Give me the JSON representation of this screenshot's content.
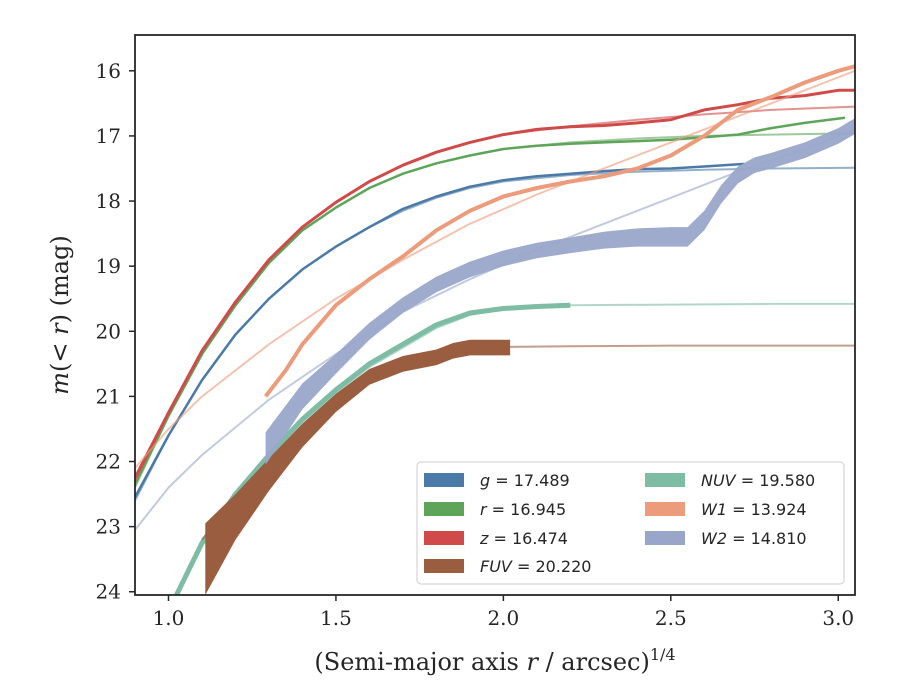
{
  "chart_data": {
    "type": "line",
    "xlabel": "(Semi-major axis r / arcsec)^1/4",
    "ylabel": "m(< r) (mag)",
    "xlim": [
      0.9,
      3.05
    ],
    "ylim": [
      24.05,
      15.45
    ],
    "y_inverted": true,
    "grid": false,
    "legend_placement": "lower-right",
    "xticks": [
      "1.0",
      "1.5",
      "2.0",
      "2.5",
      "3.0"
    ],
    "xtick_values": [
      1.0,
      1.5,
      2.0,
      2.5,
      3.0
    ],
    "yticks": [
      "16",
      "17",
      "18",
      "19",
      "20",
      "21",
      "22",
      "23",
      "24"
    ],
    "ytick_values": [
      16,
      17,
      18,
      19,
      20,
      21,
      22,
      23,
      24
    ],
    "legend": [
      {
        "label": "g = 17.489",
        "color": "#4c7aa8"
      },
      {
        "label": "NUV = 19.580",
        "color": "#7fbca5"
      },
      {
        "label": "r = 16.945",
        "color": "#5ea55a"
      },
      {
        "label": "W1 = 13.924",
        "color": "#ec9b7b"
      },
      {
        "label": "z = 16.474",
        "color": "#d04a49"
      },
      {
        "label": "W2 = 14.810",
        "color": "#99a6ca"
      },
      {
        "label": "FUV = 20.220",
        "color": "#9b5d3f"
      }
    ],
    "series": [
      {
        "name": "g = 17.489",
        "kind": "model",
        "color": "#4c7aa8",
        "x": [
          0.9,
          1.0,
          1.1,
          1.2,
          1.3,
          1.4,
          1.5,
          1.6,
          1.7,
          1.8,
          1.9,
          2.0,
          2.2,
          2.4,
          2.6,
          2.8,
          3.05
        ],
        "y": [
          22.6,
          21.6,
          20.75,
          20.05,
          19.5,
          19.05,
          18.7,
          18.4,
          18.15,
          17.95,
          17.8,
          17.7,
          17.6,
          17.55,
          17.52,
          17.5,
          17.49
        ]
      },
      {
        "name": "g = 17.489",
        "kind": "profile",
        "color": "#4c7aa8",
        "width": 2.5,
        "x": [
          0.9,
          1.0,
          1.1,
          1.2,
          1.3,
          1.4,
          1.5,
          1.6,
          1.7,
          1.8,
          1.9,
          2.0,
          2.1,
          2.2,
          2.3,
          2.4,
          2.5,
          2.6,
          2.72
        ],
        "y": [
          22.55,
          21.6,
          20.75,
          20.05,
          19.5,
          19.05,
          18.7,
          18.4,
          18.12,
          17.93,
          17.78,
          17.68,
          17.62,
          17.58,
          17.54,
          17.51,
          17.5,
          17.47,
          17.43
        ]
      },
      {
        "name": "r = 16.945",
        "kind": "model",
        "color": "#5ea55a",
        "x": [
          0.9,
          1.0,
          1.1,
          1.2,
          1.3,
          1.4,
          1.5,
          1.6,
          1.7,
          1.8,
          1.9,
          2.0,
          2.2,
          2.4,
          2.6,
          2.8,
          3.05
        ],
        "y": [
          22.4,
          21.3,
          20.35,
          19.6,
          18.95,
          18.45,
          18.1,
          17.8,
          17.58,
          17.42,
          17.3,
          17.2,
          17.1,
          17.04,
          17.0,
          16.98,
          16.96
        ]
      },
      {
        "name": "r = 16.945",
        "kind": "profile",
        "color": "#5ea55a",
        "width": 2.5,
        "x": [
          0.9,
          1.0,
          1.1,
          1.2,
          1.3,
          1.4,
          1.5,
          1.6,
          1.7,
          1.8,
          1.9,
          2.0,
          2.1,
          2.2,
          2.3,
          2.4,
          2.5,
          2.6,
          2.7,
          2.8,
          2.9,
          3.02
        ],
        "y": [
          22.35,
          21.3,
          20.35,
          19.6,
          18.95,
          18.45,
          18.1,
          17.8,
          17.58,
          17.42,
          17.3,
          17.2,
          17.15,
          17.12,
          17.1,
          17.08,
          17.06,
          17.02,
          16.98,
          16.88,
          16.8,
          16.72
        ]
      },
      {
        "name": "z = 16.474",
        "kind": "model",
        "color": "#d04a49",
        "x": [
          0.9,
          1.0,
          1.1,
          1.2,
          1.3,
          1.4,
          1.5,
          1.6,
          1.7,
          1.8,
          1.9,
          2.0,
          2.2,
          2.4,
          2.6,
          2.8,
          3.05
        ],
        "y": [
          22.3,
          21.25,
          20.3,
          19.55,
          18.9,
          18.4,
          18.02,
          17.7,
          17.45,
          17.25,
          17.1,
          16.98,
          16.85,
          16.75,
          16.67,
          16.6,
          16.55
        ]
      },
      {
        "name": "z = 16.474",
        "kind": "profile",
        "color": "#d04a49",
        "width": 3,
        "x": [
          0.9,
          1.0,
          1.1,
          1.2,
          1.3,
          1.4,
          1.5,
          1.6,
          1.7,
          1.8,
          1.9,
          2.0,
          2.1,
          2.2,
          2.3,
          2.4,
          2.5,
          2.6,
          2.7,
          2.8,
          2.9,
          3.0,
          3.05
        ],
        "y": [
          22.25,
          21.25,
          20.3,
          19.55,
          18.9,
          18.4,
          18.02,
          17.7,
          17.45,
          17.25,
          17.1,
          16.98,
          16.9,
          16.86,
          16.84,
          16.8,
          16.75,
          16.6,
          16.52,
          16.42,
          16.38,
          16.3,
          16.3
        ]
      },
      {
        "name": "NUV = 19.580",
        "kind": "model",
        "color": "#7fbca5",
        "x": [
          1.0,
          1.1,
          1.2,
          1.3,
          1.4,
          1.5,
          1.6,
          1.7,
          1.8,
          1.9,
          2.0,
          2.2,
          2.5,
          2.8,
          3.05
        ],
        "y": [
          24.3,
          23.3,
          22.55,
          21.95,
          21.4,
          20.95,
          20.55,
          20.25,
          19.95,
          19.75,
          19.65,
          19.6,
          19.59,
          19.58,
          19.58
        ]
      },
      {
        "name": "NUV = 19.580",
        "kind": "profile",
        "color": "#7fbca5",
        "width": 5,
        "x": [
          1.0,
          1.1,
          1.2,
          1.3,
          1.4,
          1.5,
          1.6,
          1.7,
          1.8,
          1.9,
          2.0,
          2.1,
          2.2
        ],
        "y": [
          24.3,
          23.25,
          22.5,
          21.9,
          21.35,
          20.9,
          20.5,
          20.2,
          19.9,
          19.72,
          19.65,
          19.62,
          19.6
        ]
      },
      {
        "name": "FUV = 20.220",
        "kind": "model",
        "color": "#9b5d3f",
        "x": [
          1.1,
          1.2,
          1.3,
          1.4,
          1.5,
          1.6,
          1.7,
          1.8,
          1.9,
          2.0,
          2.2,
          2.5,
          2.8,
          3.05
        ],
        "y": [
          23.2,
          22.6,
          22.0,
          21.45,
          21.05,
          20.7,
          20.5,
          20.35,
          20.27,
          20.24,
          20.23,
          20.22,
          20.22,
          20.22
        ]
      },
      {
        "name": "FUV = 20.220",
        "kind": "band",
        "color": "#9b5d3f",
        "x": [
          1.11,
          1.2,
          1.3,
          1.4,
          1.5,
          1.6,
          1.7,
          1.8,
          1.85,
          1.9,
          1.95,
          2.02
        ],
        "y": [
          23.5,
          22.85,
          22.2,
          21.6,
          21.1,
          20.7,
          20.5,
          20.4,
          20.3,
          20.25,
          20.25,
          20.25
        ],
        "half_width": [
          0.55,
          0.35,
          0.25,
          0.18,
          0.14,
          0.12,
          0.12,
          0.12,
          0.12,
          0.12,
          0.12,
          0.12
        ]
      },
      {
        "name": "W1 = 13.924",
        "kind": "model",
        "color": "#ec9b7b",
        "x": [
          0.9,
          1.0,
          1.1,
          1.3,
          1.5,
          1.7,
          1.9,
          2.1,
          2.3,
          2.5,
          2.7,
          2.9,
          3.05
        ],
        "y": [
          22.1,
          21.5,
          21.0,
          20.2,
          19.5,
          18.9,
          18.35,
          17.9,
          17.5,
          17.1,
          16.7,
          16.3,
          16.0
        ]
      },
      {
        "name": "W1 = 13.924",
        "kind": "profile",
        "color": "#ec9b7b",
        "width": 4,
        "x": [
          1.29,
          1.35,
          1.4,
          1.5,
          1.6,
          1.7,
          1.8,
          1.9,
          2.0,
          2.1,
          2.2,
          2.3,
          2.4,
          2.5,
          2.6,
          2.7,
          2.8,
          2.9,
          3.0,
          3.05
        ],
        "y": [
          21.0,
          20.6,
          20.2,
          19.6,
          19.2,
          18.85,
          18.45,
          18.15,
          17.93,
          17.8,
          17.7,
          17.62,
          17.5,
          17.3,
          17.0,
          16.6,
          16.4,
          16.18,
          16.0,
          15.93
        ]
      },
      {
        "name": "W2 = 14.810",
        "kind": "model",
        "color": "#99a6ca",
        "x": [
          0.9,
          1.0,
          1.1,
          1.3,
          1.5,
          1.7,
          1.9,
          2.1,
          2.3,
          2.5,
          2.7,
          2.9,
          3.05
        ],
        "y": [
          23.05,
          22.4,
          21.9,
          21.05,
          20.35,
          19.7,
          19.2,
          18.75,
          18.35,
          17.95,
          17.55,
          17.2,
          16.9
        ]
      },
      {
        "name": "W2 = 14.810",
        "kind": "band",
        "color": "#99a6ca",
        "x": [
          1.29,
          1.4,
          1.5,
          1.6,
          1.7,
          1.8,
          1.9,
          2.0,
          2.1,
          2.2,
          2.3,
          2.4,
          2.5,
          2.55,
          2.6,
          2.65,
          2.7,
          2.75,
          2.8,
          2.9,
          3.0,
          3.05
        ],
        "y": [
          21.8,
          21.0,
          20.5,
          20.0,
          19.6,
          19.28,
          19.05,
          18.88,
          18.76,
          18.68,
          18.6,
          18.56,
          18.55,
          18.55,
          18.3,
          17.9,
          17.6,
          17.45,
          17.38,
          17.22,
          17.0,
          16.85
        ],
        "half_width": [
          0.25,
          0.2,
          0.15,
          0.13,
          0.12,
          0.12,
          0.12,
          0.12,
          0.12,
          0.12,
          0.13,
          0.14,
          0.15,
          0.15,
          0.15,
          0.14,
          0.13,
          0.12,
          0.12,
          0.12,
          0.12,
          0.12
        ]
      }
    ]
  }
}
